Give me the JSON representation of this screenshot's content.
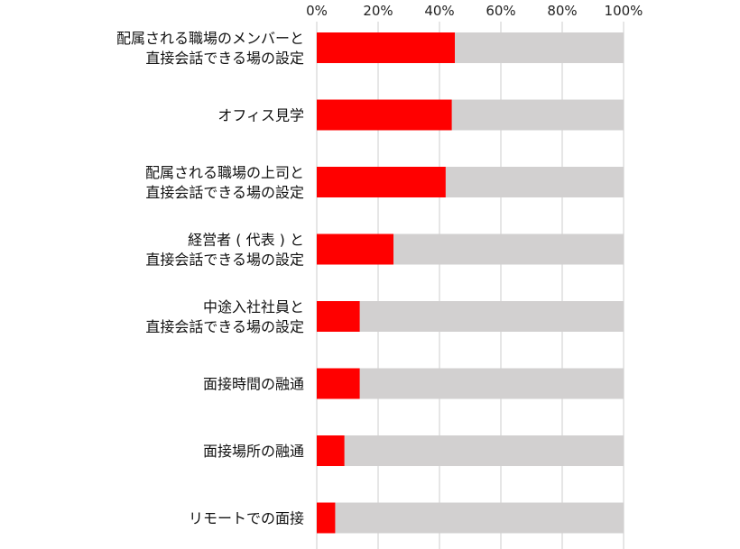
{
  "chart_data": {
    "type": "bar",
    "orientation": "horizontal",
    "stacked_background": true,
    "x_ticks": [
      "0%",
      "20%",
      "40%",
      "60%",
      "80%",
      "100%"
    ],
    "xlim": [
      0,
      100
    ],
    "grid": true,
    "categories": [
      [
        "配属される職場のメンバーと",
        "直接会話できる場の設定"
      ],
      [
        "オフィス見学"
      ],
      [
        "配属される職場の上司と",
        "直接会話できる場の設定"
      ],
      [
        "経営者 ( 代表 ) と",
        "直接会話できる場の設定"
      ],
      [
        "中途入社社員と",
        "直接会話できる場の設定"
      ],
      [
        "面接時間の融通"
      ],
      [
        "面接場所の融通"
      ],
      [
        "リモートでの面接"
      ]
    ],
    "values": [
      45,
      44,
      42,
      25,
      14,
      14,
      9,
      6
    ],
    "bar_color": "#ff0000",
    "background_color": "#d2d0d0",
    "grid_color": "#cccccc"
  }
}
